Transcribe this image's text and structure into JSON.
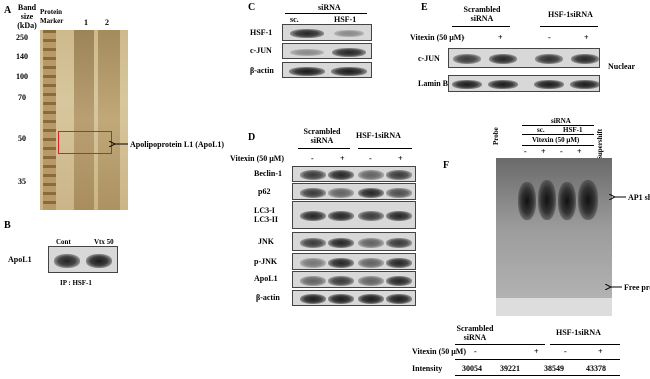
{
  "panel_a": {
    "letter": "A",
    "band_size_label": "Band size (kDa)",
    "marker_label": "Protein Marker",
    "lanes": [
      "1",
      "2"
    ],
    "ladder": [
      250,
      140,
      100,
      70,
      50,
      35
    ],
    "band_label": "Apolipoprotein L1 (ApoL1)"
  },
  "panel_b": {
    "letter": "B",
    "lanes": [
      "Cont",
      "Vtx 50"
    ],
    "row_label": "ApoL1",
    "ip_label": "IP : HSF-1"
  },
  "panel_c": {
    "letter": "C",
    "group_label": "siRNA",
    "lanes": [
      "sc.",
      "HSF-1"
    ],
    "rows": [
      "HSF-1",
      "c-JUN",
      "β-actin"
    ]
  },
  "panel_d": {
    "letter": "D",
    "groups": [
      "Scrambled siRNA",
      "HSF-1siRNA"
    ],
    "treatment_label": "Vitexin (50 μM)",
    "treatment_signs": [
      "-",
      "+",
      "-",
      "+"
    ],
    "rows": [
      "Beclin-1",
      "p62",
      "LC3-I",
      "LC3-II",
      "JNK",
      "p-JNK",
      "ApoL1",
      "β-actin"
    ]
  },
  "panel_e": {
    "letter": "E",
    "groups": [
      "Scrambled siRNA",
      "HSF-1siRNA"
    ],
    "treatment_label": "Vitexin (50 μM)",
    "treatment_signs": [
      "-",
      "+",
      "-",
      "+"
    ],
    "rows": [
      "c-JUN",
      "Lamin B"
    ],
    "fraction_label": "Nuclear"
  },
  "panel_f": {
    "letter": "F",
    "lane_probe": "Probe",
    "lane_supershift": "Supershift",
    "group_label": "siRNA",
    "subgroups": [
      "sc.",
      "HSF-1"
    ],
    "treatment_label": "Vitexin (50 μM)",
    "treatment_signs": [
      "-",
      "+",
      "-",
      "+"
    ],
    "band_labels": [
      "AP1 shift",
      "Free probe"
    ],
    "table": {
      "groups": [
        "Scrambled siRNA",
        "HSF-1siRNA"
      ],
      "treatment_label": "Vitexin (50 μM)",
      "treatment_signs": [
        "-",
        "+",
        "-",
        "+"
      ],
      "intensity_label": "Intensity",
      "intensity": [
        30054,
        39221,
        38549,
        43378
      ]
    }
  }
}
